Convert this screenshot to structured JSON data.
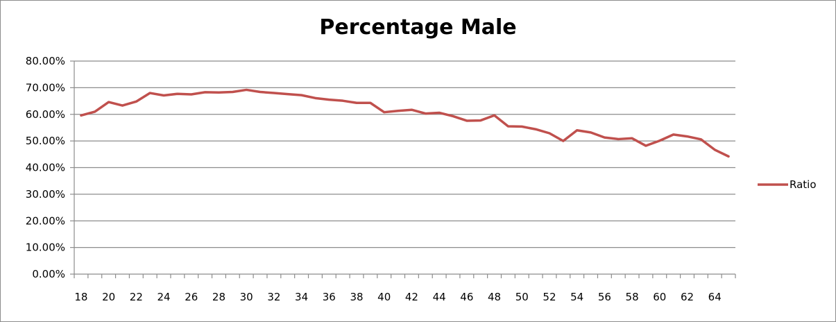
{
  "chart_data": {
    "type": "line",
    "title": "Percentage Male",
    "xlabel": "",
    "ylabel": "",
    "ylim": [
      0,
      0.8
    ],
    "yticks": [
      0,
      0.1,
      0.2,
      0.3,
      0.4,
      0.5,
      0.6,
      0.7,
      0.8
    ],
    "ytick_labels": [
      "0.00%",
      "10.00%",
      "20.00%",
      "30.00%",
      "40.00%",
      "50.00%",
      "60.00%",
      "70.00%",
      "80.00%"
    ],
    "x": [
      18,
      19,
      20,
      21,
      22,
      23,
      24,
      25,
      26,
      27,
      28,
      29,
      30,
      31,
      32,
      33,
      34,
      35,
      36,
      37,
      38,
      39,
      40,
      41,
      42,
      43,
      44,
      45,
      46,
      47,
      48,
      49,
      50,
      51,
      52,
      53,
      54,
      55,
      56,
      57,
      58,
      59,
      60,
      61,
      62,
      63,
      64,
      65
    ],
    "xtick_labels": [
      "18",
      "20",
      "22",
      "24",
      "26",
      "28",
      "30",
      "32",
      "34",
      "36",
      "38",
      "40",
      "42",
      "44",
      "46",
      "48",
      "50",
      "52",
      "54",
      "56",
      "58",
      "60",
      "62",
      "64"
    ],
    "legend_position": "right",
    "grid": true,
    "series": [
      {
        "name": "Ratio",
        "color": "#c0504d",
        "values": [
          0.596,
          0.61,
          0.646,
          0.633,
          0.648,
          0.68,
          0.671,
          0.677,
          0.675,
          0.683,
          0.682,
          0.684,
          0.692,
          0.684,
          0.68,
          0.676,
          0.672,
          0.661,
          0.655,
          0.651,
          0.643,
          0.643,
          0.608,
          0.613,
          0.617,
          0.603,
          0.606,
          0.593,
          0.576,
          0.577,
          0.596,
          0.555,
          0.554,
          0.544,
          0.529,
          0.5,
          0.54,
          0.532,
          0.513,
          0.507,
          0.51,
          0.482,
          0.501,
          0.524,
          0.517,
          0.506,
          0.467,
          0.442
        ]
      }
    ]
  }
}
